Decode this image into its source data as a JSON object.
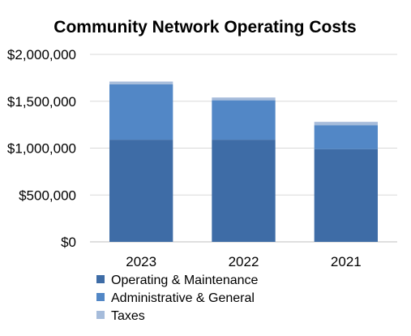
{
  "chart_data": {
    "type": "bar",
    "stacked": true,
    "title": "Community Network Operating Costs",
    "categories": [
      "2023",
      "2022",
      "2021"
    ],
    "series": [
      {
        "name": "Operating & Maintenance",
        "values": [
          1090000,
          1090000,
          990000
        ],
        "color": "#3E6CA6"
      },
      {
        "name": "Administrative & General",
        "values": [
          590000,
          420000,
          255000
        ],
        "color": "#5287C6"
      },
      {
        "name": "Taxes",
        "values": [
          30000,
          30000,
          35000
        ],
        "color": "#A6BCDB"
      }
    ],
    "yticks": [
      "$0",
      "$500,000",
      "$1,000,000",
      "$1,500,000",
      "$2,000,000"
    ],
    "ylim": [
      0,
      2000000
    ],
    "grid": true,
    "legend_position": "bottom"
  }
}
